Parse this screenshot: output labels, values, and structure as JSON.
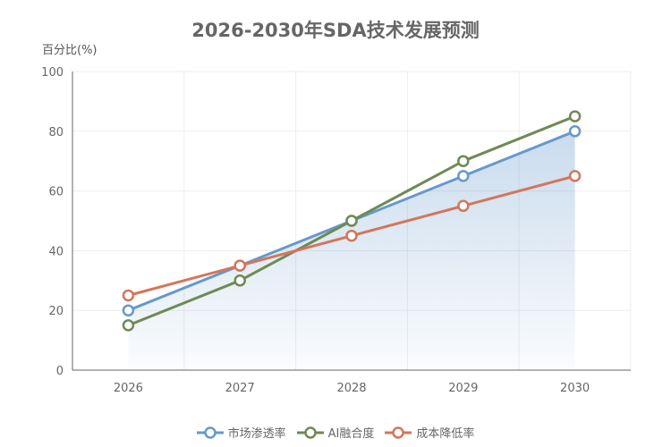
{
  "chart_data": {
    "type": "line",
    "title": "2026-2030年SDA技术发展预测",
    "xlabel": "",
    "ylabel": "百分比(%)",
    "categories": [
      "2026",
      "2027",
      "2028",
      "2029",
      "2030"
    ],
    "ylim": [
      0,
      100
    ],
    "yticks": [
      0,
      20,
      40,
      60,
      80,
      100
    ],
    "grid": true,
    "legend_position": "bottom",
    "series": [
      {
        "name": "市场渗透率",
        "values": [
          20,
          35,
          50,
          65,
          80
        ],
        "color": "#6699cc",
        "area_fill": true
      },
      {
        "name": "AI融合度",
        "values": [
          15,
          30,
          50,
          70,
          85
        ],
        "color": "#6e8a55"
      },
      {
        "name": "成本降低率",
        "values": [
          25,
          35,
          45,
          55,
          65
        ],
        "color": "#d4765a"
      }
    ]
  },
  "header": {
    "title": "2026-2030年SDA技术发展预测"
  },
  "axis": {
    "y_label": "百分比(%)"
  },
  "legend": {
    "items": [
      {
        "label": "市场渗透率",
        "color": "#6699cc"
      },
      {
        "label": "AI融合度",
        "color": "#6e8a55"
      },
      {
        "label": "成本降低率",
        "color": "#d4765a"
      }
    ]
  }
}
